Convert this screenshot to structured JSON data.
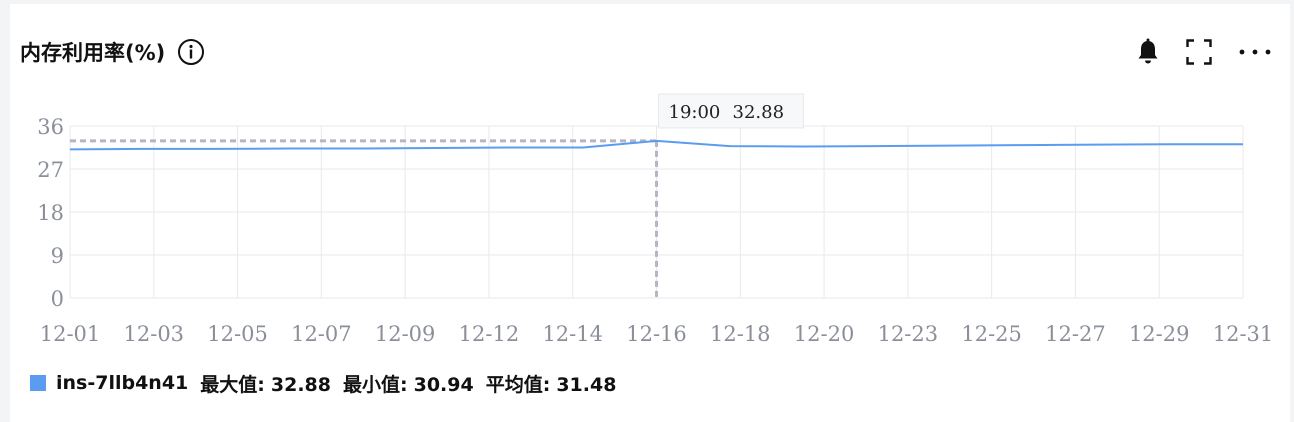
{
  "panel": {
    "title": "内存利用率(%)",
    "icons": {
      "info": "info-icon",
      "alarm": "bell-icon",
      "fullscreen": "fullscreen-icon",
      "more": "more-icon"
    }
  },
  "colors": {
    "series": "#5b9cf0",
    "grid": "#e8e9ec",
    "crosshair": "#b5b5c3",
    "tick": "#8a8f99"
  },
  "chart_data": {
    "type": "line",
    "x_ticks": [
      "12-01",
      "12-03",
      "12-05",
      "12-07",
      "12-09",
      "12-12",
      "12-14",
      "12-16",
      "12-18",
      "12-20",
      "12-23",
      "12-25",
      "12-27",
      "12-29",
      "12-31"
    ],
    "y_ticks": [
      0,
      9,
      18,
      27,
      36
    ],
    "ylim": [
      0,
      36
    ],
    "grid": true,
    "series": [
      {
        "name": "ins-7llb4n41",
        "values": [
          31.1,
          31.2,
          31.2,
          31.3,
          31.3,
          31.4,
          31.5,
          31.5,
          32.88,
          31.8,
          31.7,
          31.8,
          31.9,
          32.0,
          32.1,
          32.2,
          32.2
        ]
      }
    ],
    "tooltip": {
      "time": "19:00",
      "value": "32.88"
    }
  },
  "legend": {
    "series_name": "ins-7llb4n41",
    "max_label": "最大值:",
    "max_value": "32.88",
    "min_label": "最小值:",
    "min_value": "30.94",
    "avg_label": "平均值:",
    "avg_value": "31.48"
  }
}
